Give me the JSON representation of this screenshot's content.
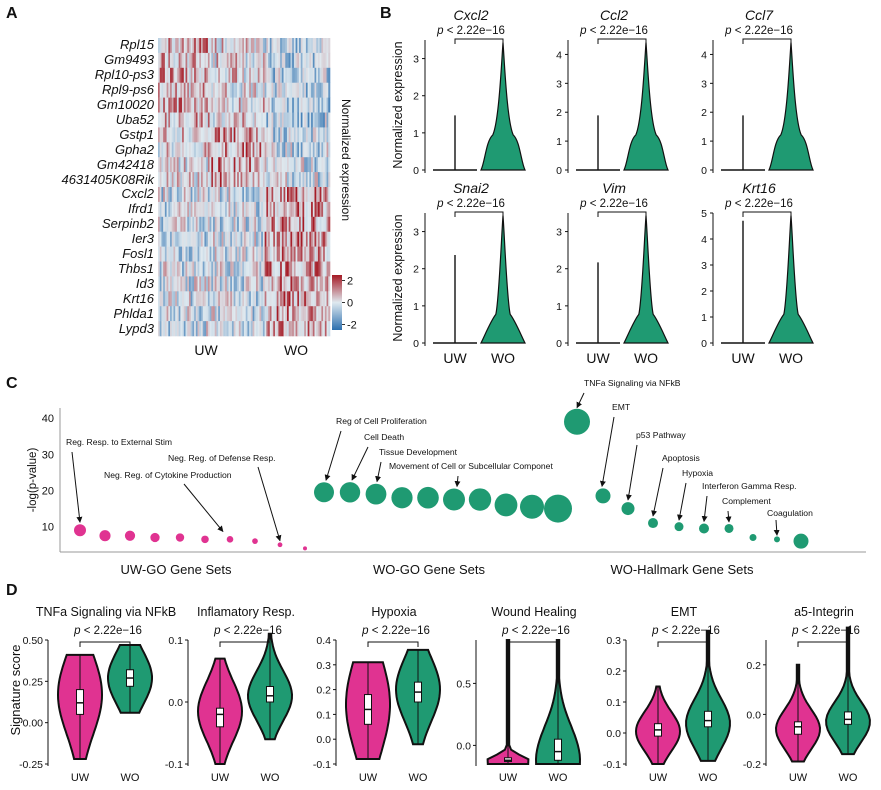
{
  "colors": {
    "uw": "#e03391",
    "wo": "#1f9a72",
    "heat_high": "#a51a25",
    "heat_mid": "#dfe9ef",
    "heat_low": "#2c6fae",
    "line": "#111111"
  },
  "panel_a": {
    "letter": "A",
    "genes": [
      "Rpl15",
      "Gm9493",
      "Rpl10-ps3",
      "Rpl9-ps6",
      "Gm10020",
      "Uba52",
      "Gstp1",
      "Gpha2",
      "Gm42418",
      "4631405K08Rik",
      "Cxcl2",
      "Ifrd1",
      "Serpinb2",
      "Ier3",
      "Fosl1",
      "Thbs1",
      "Id3",
      "Krt16",
      "Phlda1",
      "Lypd3"
    ],
    "groups": [
      "UW",
      "WO"
    ],
    "legend_title": "Normalized expression",
    "legend_ticks": [
      "2",
      "0",
      "-2"
    ],
    "legend_range": [
      -2.5,
      2.5
    ]
  },
  "panel_b": {
    "letter": "B",
    "ylabel": "Normalized expression",
    "pvalue": "p < 2.22e−16",
    "groups": [
      "UW",
      "WO"
    ],
    "plots": [
      {
        "gene": "Cxcl2",
        "ymax": 3.5,
        "ticks": [
          "0",
          "1",
          "2",
          "3"
        ]
      },
      {
        "gene": "Ccl2",
        "ymax": 4.5,
        "ticks": [
          "0",
          "1",
          "2",
          "3",
          "4"
        ]
      },
      {
        "gene": "Ccl7",
        "ymax": 4.5,
        "ticks": [
          "0",
          "1",
          "2",
          "3",
          "4"
        ]
      },
      {
        "gene": "Snai2",
        "ymax": 3.5,
        "ticks": [
          "0",
          "1",
          "2",
          "3"
        ]
      },
      {
        "gene": "Vim",
        "ymax": 3.5,
        "ticks": [
          "0",
          "1",
          "2",
          "3"
        ]
      },
      {
        "gene": "Krt16",
        "ymax": 5,
        "ticks": [
          "0",
          "1",
          "2",
          "3",
          "4",
          "5"
        ]
      }
    ]
  },
  "panel_c": {
    "letter": "C",
    "ylabel": "-log(p-value)",
    "yticks": [
      "10",
      "20",
      "30",
      "40"
    ],
    "yrange": [
      3,
      45
    ],
    "group_labels": [
      "UW-GO Gene Sets",
      "WO-GO Gene Sets",
      "WO-Hallmark Gene Sets"
    ],
    "uw_values": [
      9,
      7.5,
      7.5,
      7,
      7,
      6.5,
      6.5,
      6,
      5,
      4
    ],
    "wo_go_values": [
      19.5,
      19.5,
      19,
      18,
      18,
      17.5,
      17.5,
      16,
      15.5,
      15
    ],
    "wo_hm_values": [
      39,
      18.5,
      15,
      11,
      10,
      9.5,
      9.5,
      7,
      6.5,
      6.5,
      6
    ],
    "annotations": [
      "Reg. Resp. to External Stim",
      "Neg. Reg. of Defense Resp.",
      "Neg. Reg. of Cytokine Production",
      "Reg of Cell Proliferation",
      "Cell Death",
      "Tissue Development",
      "Movement of Cell or Subcellular Componet",
      "TNFa Signaling via NFkB",
      "EMT",
      "p53 Pathway",
      "Apoptosis",
      "Hypoxia",
      "Interferon Gamma Resp.",
      "Complement",
      "Coagulation"
    ]
  },
  "panel_d": {
    "letter": "D",
    "ylabel": "Signature score",
    "pvalue": "p < 2.22e−16",
    "groups": [
      "UW",
      "WO"
    ],
    "plots": [
      {
        "title": "TNFa Signaling via NFkB",
        "ymin": -0.25,
        "ymax": 0.5,
        "ticks": [
          "-0.25",
          "0.00",
          "0.25",
          "0.50"
        ],
        "uw": {
          "median": 0.12,
          "q1": 0.05,
          "q3": 0.2,
          "peak": 0.17,
          "lo": -0.22,
          "hi": 0.41
        },
        "wo": {
          "median": 0.27,
          "q1": 0.22,
          "q3": 0.32,
          "peak": 0.27,
          "lo": 0.06,
          "hi": 0.47
        }
      },
      {
        "title": "Inflamatory Resp.",
        "ymin": -0.1,
        "ymax": 0.1,
        "ticks": [
          "-0.1",
          "0.0",
          "0.1"
        ],
        "uw": {
          "median": -0.02,
          "q1": -0.04,
          "q3": -0.01,
          "peak": -0.015,
          "lo": -0.1,
          "hi": 0.07
        },
        "wo": {
          "median": 0.01,
          "q1": 0.0,
          "q3": 0.025,
          "peak": 0.01,
          "lo": -0.06,
          "hi": 0.11
        }
      },
      {
        "title": "Hypoxia",
        "ymin": -0.1,
        "ymax": 0.4,
        "ticks": [
          "-0.1",
          "0.0",
          "0.1",
          "0.2",
          "0.3",
          "0.4"
        ],
        "uw": {
          "median": 0.12,
          "q1": 0.06,
          "q3": 0.18,
          "peak": 0.14,
          "lo": -0.08,
          "hi": 0.31
        },
        "wo": {
          "median": 0.19,
          "q1": 0.15,
          "q3": 0.23,
          "peak": 0.2,
          "lo": -0.02,
          "hi": 0.36
        }
      },
      {
        "title": "Wound Healing",
        "ymin": -0.15,
        "ymax": 0.85,
        "ticks": [
          "0.0",
          "0.5"
        ],
        "uw": {
          "median": -0.12,
          "q1": -0.13,
          "q3": -0.1,
          "peak": -0.13,
          "lo": -0.15,
          "hi": 0.85
        },
        "wo": {
          "median": -0.05,
          "q1": -0.12,
          "q3": 0.05,
          "peak": -0.12,
          "lo": -0.15,
          "hi": 0.85
        }
      },
      {
        "title": "EMT",
        "ymin": -0.1,
        "ymax": 0.3,
        "ticks": [
          "-0.1",
          "0.0",
          "0.1",
          "0.2",
          "0.3"
        ],
        "uw": {
          "median": 0.01,
          "q1": -0.01,
          "q3": 0.03,
          "peak": 0.005,
          "lo": -0.1,
          "hi": 0.15
        },
        "wo": {
          "median": 0.04,
          "q1": 0.02,
          "q3": 0.07,
          "peak": 0.03,
          "lo": -0.09,
          "hi": 0.33
        }
      },
      {
        "title": "a5-Integrin",
        "ymin": -0.2,
        "ymax": 0.3,
        "ticks": [
          "-0.2",
          "0.0",
          "0.2"
        ],
        "uw": {
          "median": -0.05,
          "q1": -0.08,
          "q3": -0.03,
          "peak": -0.06,
          "lo": -0.19,
          "hi": 0.2
        },
        "wo": {
          "median": -0.02,
          "q1": -0.04,
          "q3": 0.01,
          "peak": -0.03,
          "lo": -0.16,
          "hi": 0.35
        }
      }
    ]
  }
}
